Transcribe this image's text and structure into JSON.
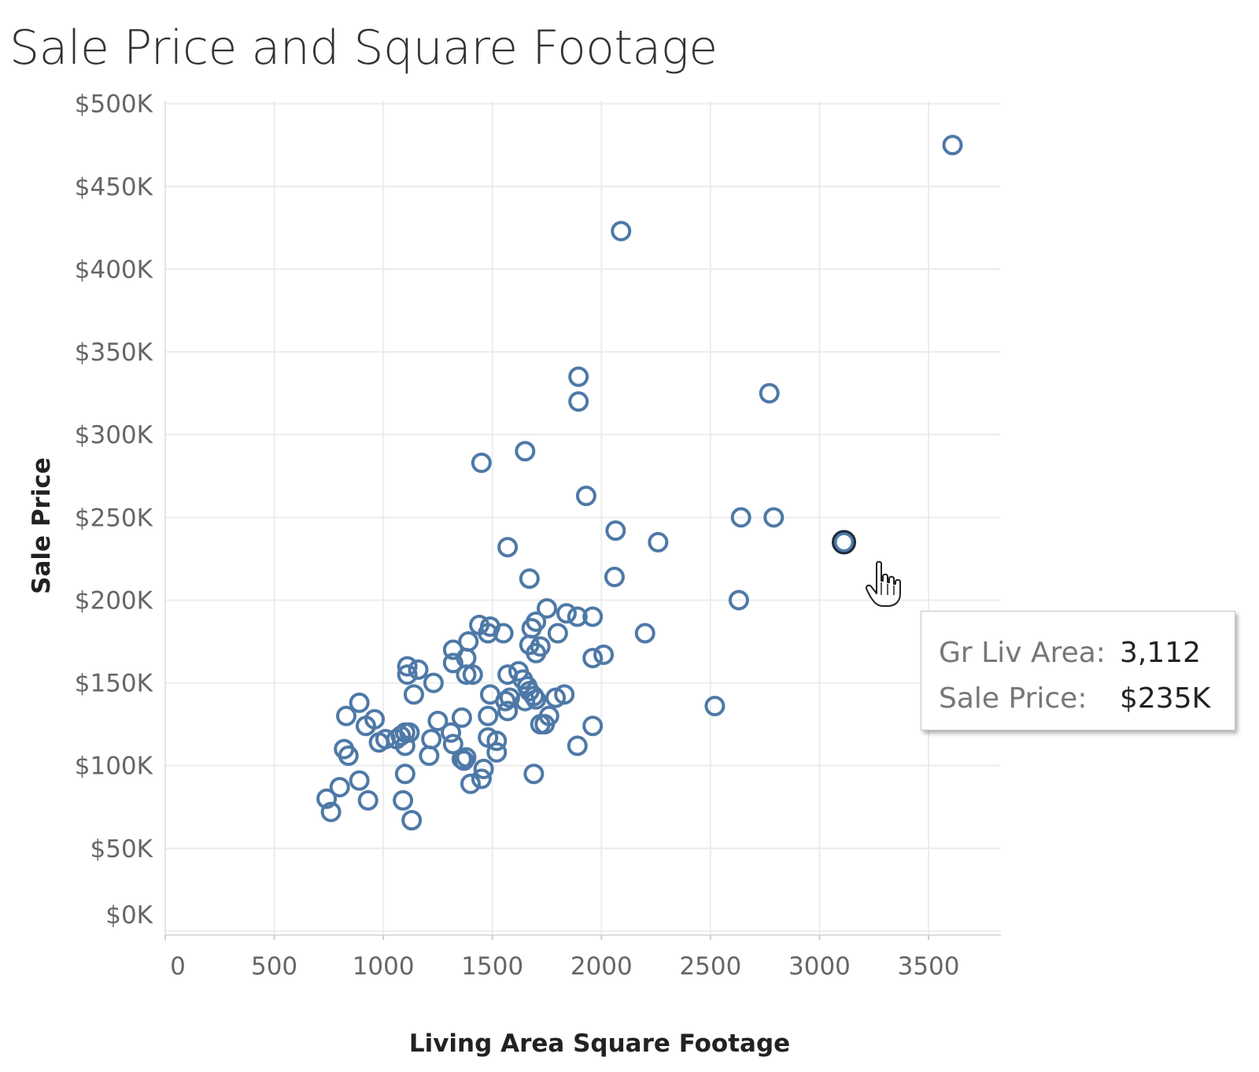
{
  "title": "Sale Price and Square Footage",
  "chart_data": {
    "type": "scatter",
    "title": "Sale Price and Square Footage",
    "xlabel": "Living Area Square Footage",
    "ylabel": "Sale Price",
    "xlim": [
      0,
      3850
    ],
    "ylim": [
      0,
      510000
    ],
    "xticks": [
      0,
      500,
      1000,
      1500,
      2000,
      2500,
      3000,
      3500
    ],
    "xtick_labels": [
      "0",
      "500",
      "1000",
      "1500",
      "2000",
      "2500",
      "3000",
      "3500"
    ],
    "yticks": [
      0,
      50000,
      100000,
      150000,
      200000,
      250000,
      300000,
      350000,
      400000,
      450000,
      500000
    ],
    "ytick_labels": [
      "$0K",
      "$50K",
      "$100K",
      "$150K",
      "$200K",
      "$250K",
      "$300K",
      "$350K",
      "$400K",
      "$450K",
      "$500K"
    ],
    "grid": true,
    "marker": "open-circle",
    "marker_color": "#4e79a7",
    "highlight_color": "#1f2a3a",
    "x": [
      3610,
      2090,
      1895,
      1895,
      2770,
      1450,
      1650,
      1930,
      2640,
      2790,
      3112,
      1570,
      2065,
      2260,
      1670,
      2060,
      2630,
      1440,
      1490,
      1480,
      1550,
      1750,
      1840,
      1890,
      1960,
      1800,
      1700,
      1680,
      1670,
      1720,
      1700,
      1320,
      1390,
      1380,
      1320,
      1960,
      2010,
      2200,
      1110,
      1160,
      1110,
      1230,
      1380,
      1410,
      1570,
      1620,
      1640,
      1660,
      1140,
      1490,
      1560,
      1580,
      1670,
      1690,
      1700,
      1790,
      1830,
      890,
      830,
      960,
      920,
      1250,
      1360,
      1480,
      1570,
      1760,
      1720,
      1740,
      1960,
      1320,
      1100,
      1080,
      1120,
      1010,
      980,
      1100,
      1220,
      1480,
      1890,
      2520,
      820,
      840,
      1210,
      1370,
      1380,
      1520,
      1310,
      1460,
      1100,
      890,
      800,
      1450,
      1400,
      1690,
      740,
      930,
      760,
      1090,
      1130,
      1060,
      1520,
      1360,
      1650
    ],
    "y": [
      475000,
      423000,
      335000,
      320000,
      325000,
      283000,
      290000,
      263000,
      250000,
      250000,
      235000,
      232000,
      242000,
      235000,
      213000,
      214000,
      200000,
      185000,
      184000,
      180000,
      180000,
      195000,
      192000,
      190000,
      190000,
      180000,
      187000,
      183000,
      173000,
      172000,
      168000,
      170000,
      175000,
      165000,
      162000,
      165000,
      167000,
      180000,
      160000,
      158000,
      155000,
      150000,
      155000,
      155000,
      155000,
      157000,
      152000,
      148000,
      143000,
      143000,
      139000,
      141000,
      145000,
      142000,
      140000,
      141000,
      143000,
      138000,
      130000,
      128000,
      124000,
      127000,
      129000,
      130000,
      133000,
      130000,
      125000,
      125000,
      124000,
      113000,
      120000,
      118000,
      120000,
      116000,
      114000,
      112000,
      116000,
      117000,
      112000,
      136000,
      110000,
      106000,
      106000,
      103000,
      105000,
      108000,
      120000,
      98000,
      95000,
      91000,
      87000,
      92000,
      89000,
      95000,
      80000,
      79000,
      72000,
      79000,
      67000,
      116000,
      115000,
      104000,
      139000
    ],
    "highlight": {
      "x": 3112,
      "y": 235000
    },
    "tooltip": {
      "field1_label": "Gr Liv Area:",
      "field1_value": "3,112",
      "field2_label": "Sale Price:",
      "field2_value": "$235K"
    }
  },
  "icons": {
    "cursor": "hand-pointer-icon"
  }
}
